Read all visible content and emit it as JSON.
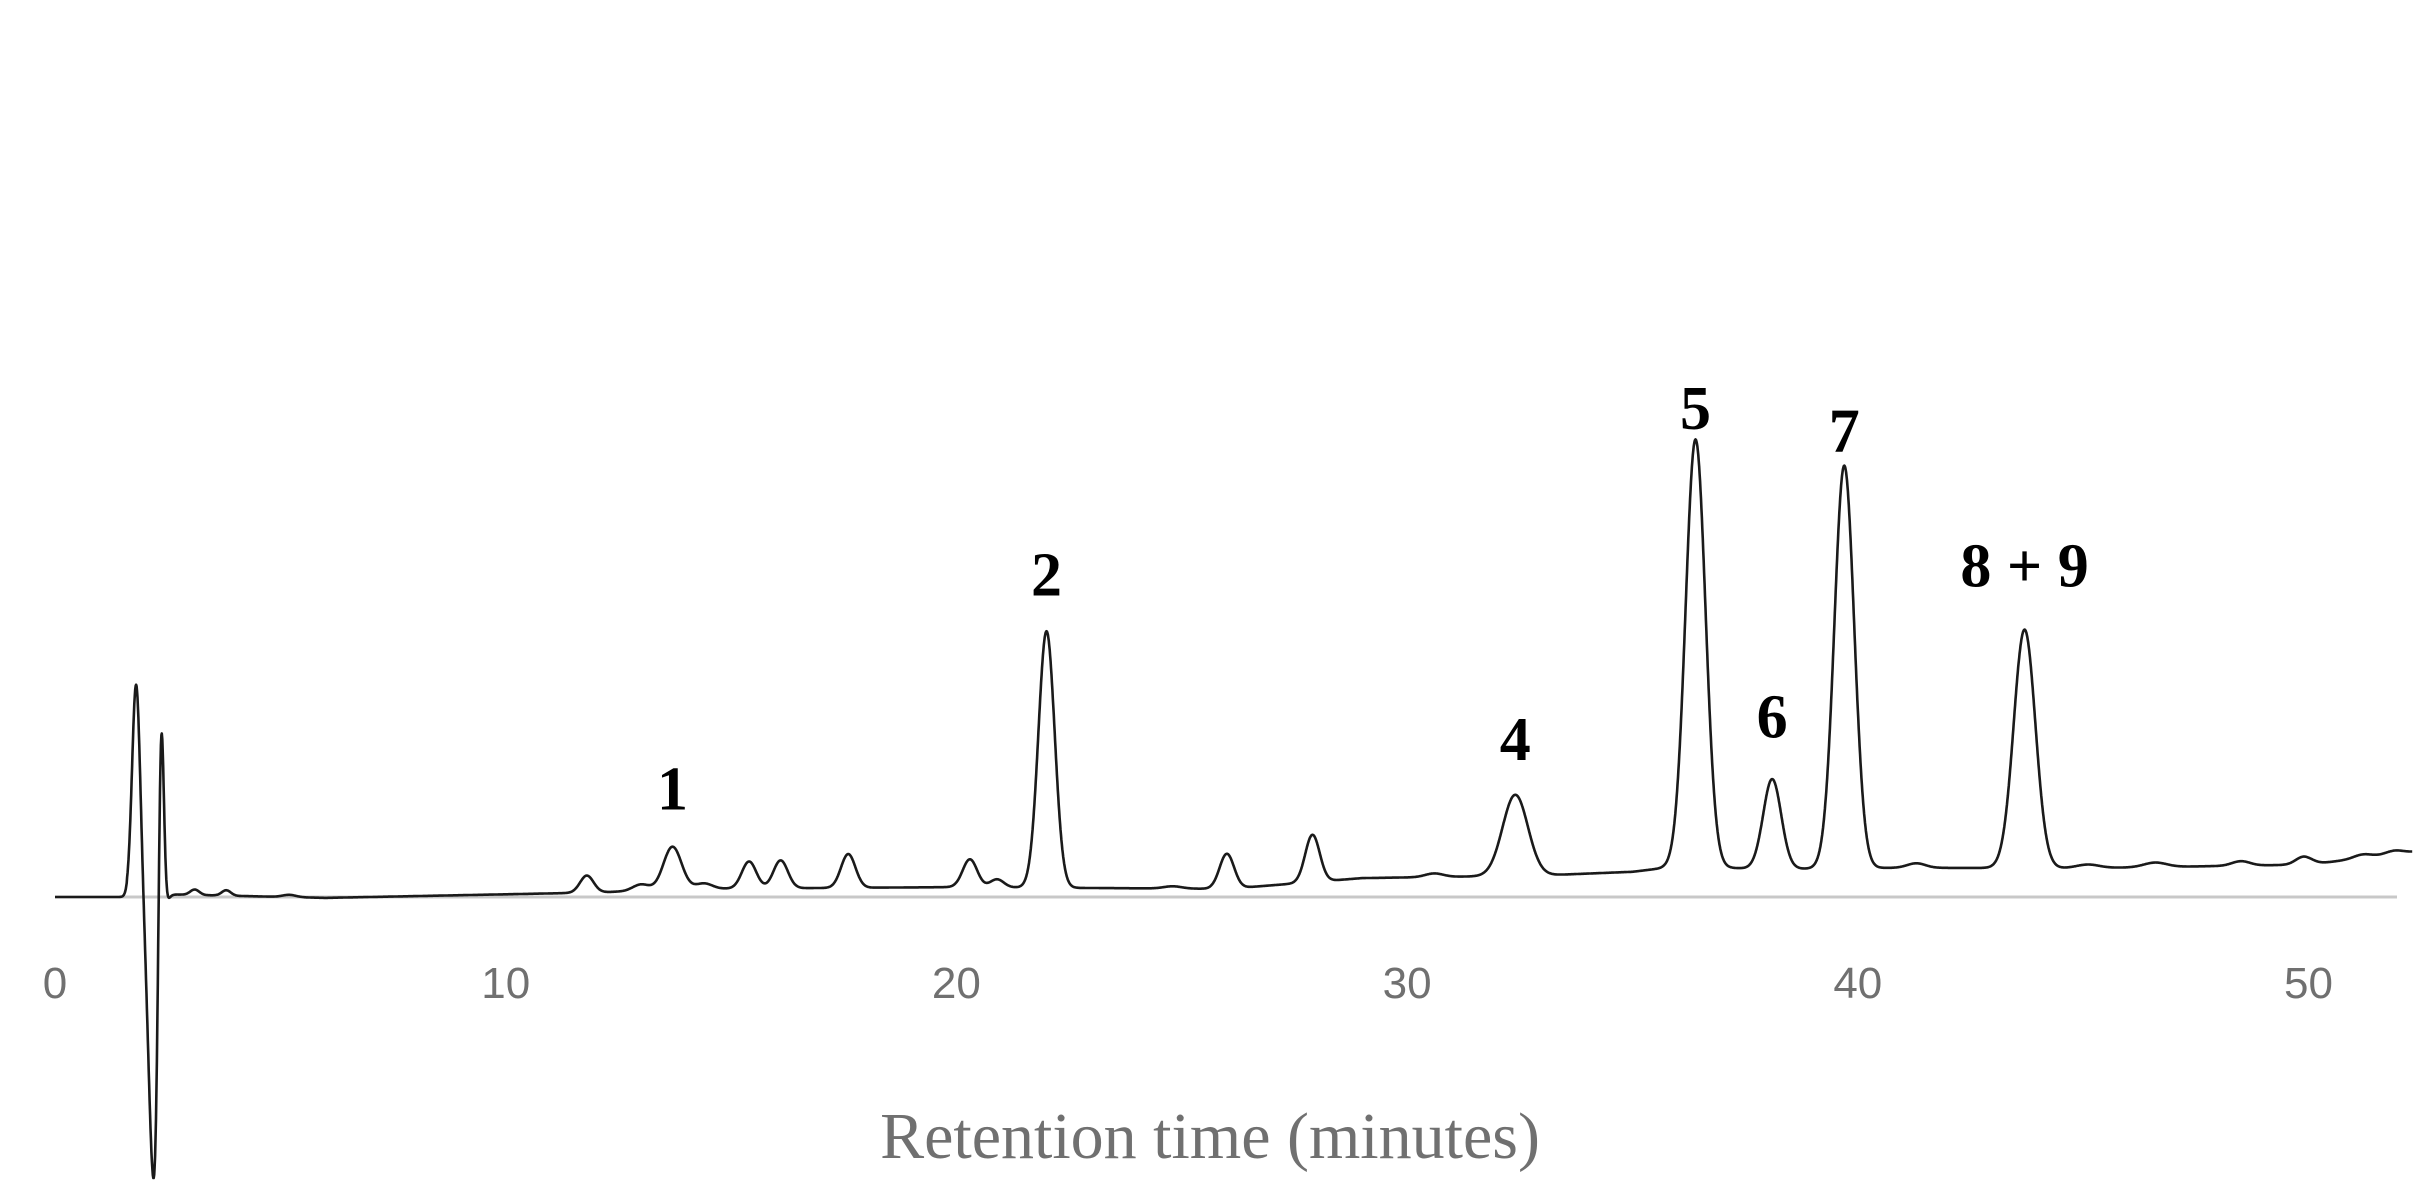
{
  "chart_data": {
    "type": "line",
    "xlabel": "Retention time (minutes)",
    "ylabel": "",
    "title": "",
    "xlim": [
      0,
      52.3
    ],
    "ylim": [
      -3.1,
      9.9
    ],
    "x_ticks": [
      "0",
      "10",
      "20",
      "30",
      "40",
      "50"
    ],
    "x_tick_values": [
      0,
      10,
      20,
      30,
      40,
      50
    ],
    "grid": false,
    "legend": "none",
    "series": [
      {
        "baseline": [
          [
            0,
            0.0
          ],
          [
            2.5,
            0.06
          ],
          [
            6,
            -0.02
          ],
          [
            10,
            0.06
          ],
          [
            12,
            0.1
          ],
          [
            14,
            0.18
          ],
          [
            17,
            0.2
          ],
          [
            20,
            0.22
          ],
          [
            23,
            0.2
          ],
          [
            26,
            0.18
          ],
          [
            29,
            0.42
          ],
          [
            31,
            0.45
          ],
          [
            33,
            0.48
          ],
          [
            35,
            0.56
          ],
          [
            36,
            0.68
          ],
          [
            38,
            0.62
          ],
          [
            41,
            0.65
          ],
          [
            45,
            0.64
          ],
          [
            50,
            0.72
          ],
          [
            52.3,
            1.0
          ]
        ],
        "peaks": [
          {
            "rt": 1.8,
            "height": 4.7,
            "width": 0.09
          },
          {
            "rt": 2.2,
            "height": -6.5,
            "width": 0.12
          },
          {
            "rt": 2.35,
            "height": 6.3,
            "width": 0.06
          },
          {
            "rt": 3.1,
            "height": 0.12,
            "width": 0.1
          },
          {
            "rt": 3.8,
            "height": 0.12,
            "width": 0.1
          },
          {
            "rt": 5.2,
            "height": 0.05,
            "width": 0.15
          },
          {
            "rt": 11.8,
            "height": 0.38,
            "width": 0.15
          },
          {
            "rt": 13.0,
            "height": 0.14,
            "width": 0.18
          },
          {
            "rt": 13.7,
            "height": 0.95,
            "width": 0.2
          },
          {
            "rt": 14.4,
            "height": 0.12,
            "width": 0.18
          },
          {
            "rt": 15.4,
            "height": 0.6,
            "width": 0.16
          },
          {
            "rt": 16.1,
            "height": 0.62,
            "width": 0.16
          },
          {
            "rt": 17.6,
            "height": 0.75,
            "width": 0.16
          },
          {
            "rt": 20.3,
            "height": 0.62,
            "width": 0.16
          },
          {
            "rt": 20.9,
            "height": 0.18,
            "width": 0.15
          },
          {
            "rt": 22.0,
            "height": 5.7,
            "width": 0.18
          },
          {
            "rt": 24.8,
            "height": 0.05,
            "width": 0.2
          },
          {
            "rt": 26.0,
            "height": 0.78,
            "width": 0.16
          },
          {
            "rt": 27.9,
            "height": 1.05,
            "width": 0.16
          },
          {
            "rt": 30.6,
            "height": 0.08,
            "width": 0.2
          },
          {
            "rt": 32.4,
            "height": 1.8,
            "width": 0.28
          },
          {
            "rt": 36.4,
            "height": 9.5,
            "width": 0.22
          },
          {
            "rt": 38.1,
            "height": 2.0,
            "width": 0.2
          },
          {
            "rt": 39.7,
            "height": 8.95,
            "width": 0.22
          },
          {
            "rt": 41.3,
            "height": 0.1,
            "width": 0.2
          },
          {
            "rt": 43.7,
            "height": 5.3,
            "width": 0.24
          },
          {
            "rt": 45.1,
            "height": 0.08,
            "width": 0.25
          },
          {
            "rt": 46.6,
            "height": 0.1,
            "width": 0.25
          },
          {
            "rt": 48.5,
            "height": 0.1,
            "width": 0.2
          },
          {
            "rt": 49.9,
            "height": 0.18,
            "width": 0.18
          },
          {
            "rt": 51.2,
            "height": 0.08,
            "width": 0.2
          },
          {
            "rt": 51.9,
            "height": 0.08,
            "width": 0.2
          }
        ]
      }
    ],
    "annotations": [
      {
        "text": "1",
        "x": 13.7,
        "y": 1.95
      },
      {
        "text": "2",
        "x": 22.0,
        "y": 6.7
      },
      {
        "text": "4",
        "x": 32.4,
        "y": 3.05
      },
      {
        "text": "5",
        "x": 36.4,
        "y": 10.4
      },
      {
        "text": "6",
        "x": 38.1,
        "y": 3.55
      },
      {
        "text": "7",
        "x": 39.7,
        "y": 9.9
      },
      {
        "text": "8 + 9",
        "x": 43.7,
        "y": 6.9
      }
    ],
    "colors": {
      "trace": "#1a1a1a",
      "axis": "#c8c8c8",
      "tick_text": "#707070"
    }
  }
}
